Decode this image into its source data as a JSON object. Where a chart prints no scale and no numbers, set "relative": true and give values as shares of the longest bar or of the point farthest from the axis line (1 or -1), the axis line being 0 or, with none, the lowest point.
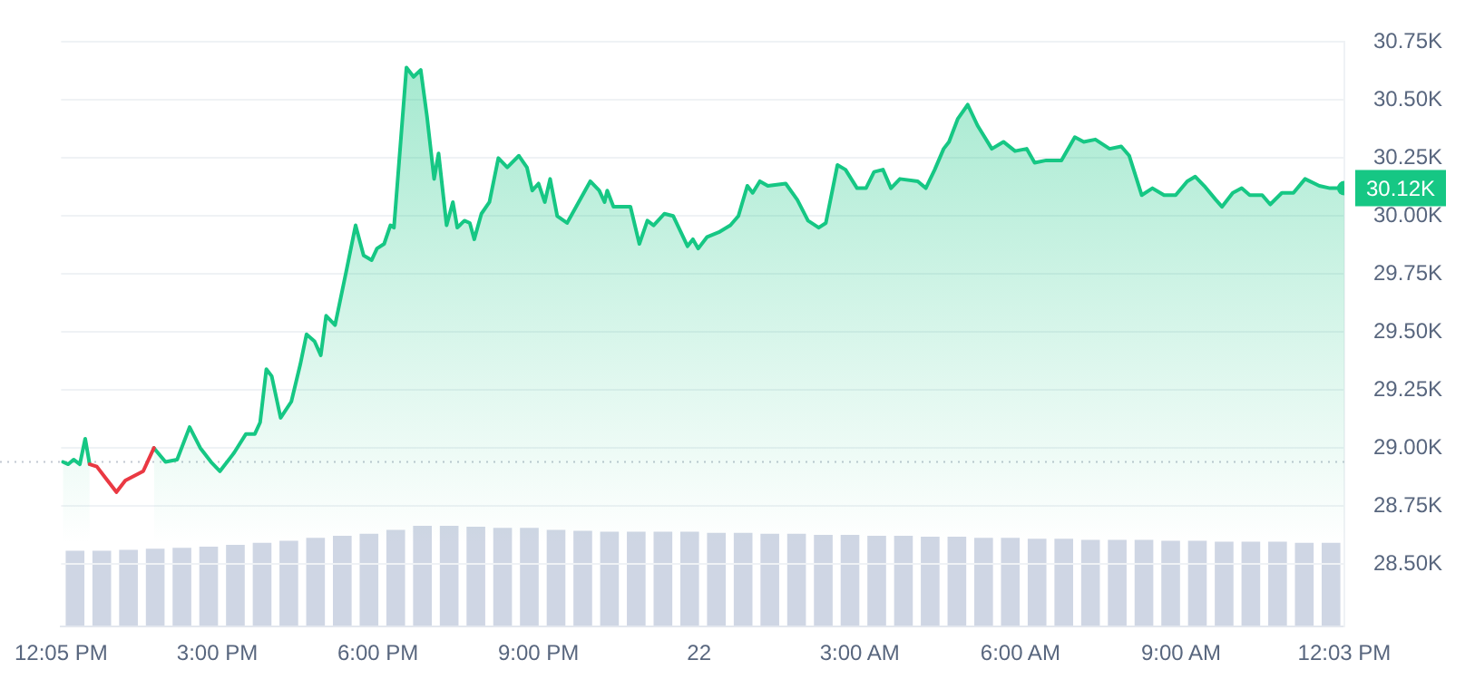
{
  "chart_data": [
    {
      "type": "area",
      "legend": false,
      "grid": "y",
      "marker": "none",
      "line_style": "solid",
      "xlim": [
        "--06-21T12:05",
        "--06-22T12:03"
      ],
      "xticks": [
        {
          "value": "--06-21T12:05",
          "label": "12:05 PM"
        },
        {
          "value": "--06-21T15:00",
          "label": "3:00 PM"
        },
        {
          "value": "--06-21T18:00",
          "label": "6:00 PM"
        },
        {
          "value": "--06-21T21:00",
          "label": "9:00 PM"
        },
        {
          "value": "--06-22T00:00",
          "label": "22"
        },
        {
          "value": "--06-22T03:00",
          "label": "3:00 AM"
        },
        {
          "value": "--06-22T06:00",
          "label": "6:00 AM"
        },
        {
          "value": "--06-22T09:00",
          "label": "9:00 AM"
        },
        {
          "value": "--06-22T12:03",
          "label": "12:03 PM"
        }
      ],
      "ylim": [
        28230,
        30750
      ],
      "yticks": [
        {
          "value": 28500,
          "label": "28.50K"
        },
        {
          "value": 28750,
          "label": "28.75K"
        },
        {
          "value": 29000,
          "label": "29.00K"
        },
        {
          "value": 29250,
          "label": "29.25K"
        },
        {
          "value": 29500,
          "label": "29.50K"
        },
        {
          "value": 29750,
          "label": "29.75K"
        },
        {
          "value": 30000,
          "label": "30.00K"
        },
        {
          "value": 30250,
          "label": "30.25K"
        },
        {
          "value": 30500,
          "label": "30.50K"
        },
        {
          "value": 30750,
          "label": "30.75K"
        }
      ],
      "ref_lines": [
        {
          "axis": "y",
          "value": 28940,
          "color": "#c1c7d1",
          "line_style": "dotted"
        }
      ],
      "annotations": [
        "30.12K"
      ],
      "series": [
        {
          "color": "#16c784",
          "x": [
            "--06-21T12:07",
            "--06-21T12:13",
            "--06-21T12:19",
            "--06-21T12:26",
            "--06-21T12:32",
            "--06-21T12:37",
            "--06-21T12:45",
            "--06-21T12:55",
            "--06-21T13:07",
            "--06-21T13:17",
            "--06-21T13:37",
            "--06-21T13:49",
            "--06-21T14:02",
            "--06-21T14:15",
            "--06-21T14:29",
            "--06-21T14:41",
            "--06-21T14:53",
            "--06-21T15:03",
            "--06-21T15:19",
            "--06-21T15:32",
            "--06-21T15:42",
            "--06-21T15:48",
            "--06-21T15:55",
            "--06-21T16:01",
            "--06-21T16:11",
            "--06-21T16:23",
            "--06-21T16:33",
            "--06-21T16:40",
            "--06-21T16:49",
            "--06-21T16:56",
            "--06-21T17:02",
            "--06-21T17:12",
            "--06-21T17:25",
            "--06-21T17:35",
            "--06-21T17:44",
            "--06-21T17:53",
            "--06-21T17:59",
            "--06-21T18:07",
            "--06-21T18:14",
            "--06-21T18:18",
            "--06-21T18:32",
            "--06-21T18:40",
            "--06-21T18:48",
            "--06-21T18:55",
            "--06-21T19:03",
            "--06-21T19:08",
            "--06-21T19:17",
            "--06-21T19:24",
            "--06-21T19:29",
            "--06-21T19:37",
            "--06-21T19:43",
            "--06-21T19:48",
            "--06-21T19:56",
            "--06-21T20:05",
            "--06-21T20:15",
            "--06-21T20:25",
            "--06-21T20:38",
            "--06-21T20:47",
            "--06-21T20:53",
            "--06-21T21:00",
            "--06-21T21:07",
            "--06-21T21:13",
            "--06-21T21:21",
            "--06-21T21:32",
            "--06-21T21:45",
            "--06-21T21:58",
            "--06-21T22:08",
            "--06-21T22:14",
            "--06-21T22:17",
            "--06-21T22:24",
            "--06-21T22:43",
            "--06-21T22:53",
            "--06-21T23:02",
            "--06-21T23:09",
            "--06-21T23:21",
            "--06-21T23:31",
            "--06-21T23:47",
            "--06-21T23:53",
            "--06-21T23:59",
            "--06-22T00:09",
            "--06-22T00:22",
            "--06-22T00:35",
            "--06-22T00:44",
            "--06-22T00:54",
            "--06-22T01:00",
            "--06-22T01:08",
            "--06-22T01:17",
            "--06-22T01:37",
            "--06-22T01:50",
            "--06-22T02:02",
            "--06-22T02:14",
            "--06-22T02:22",
            "--06-22T02:35",
            "--06-22T02:44",
            "--06-22T02:57",
            "--06-22T03:07",
            "--06-22T03:16",
            "--06-22T03:26",
            "--06-22T03:35",
            "--06-22T03:45",
            "--06-22T04:05",
            "--06-22T04:14",
            "--06-22T04:24",
            "--06-22T04:34",
            "--06-22T04:40",
            "--06-22T04:50",
            "--06-22T05:01",
            "--06-22T05:12",
            "--06-22T05:28",
            "--06-22T05:41",
            "--06-22T05:54",
            "--06-22T06:07",
            "--06-22T06:16",
            "--06-22T06:29",
            "--06-22T06:46",
            "--06-22T07:01",
            "--06-22T07:11",
            "--06-22T07:24",
            "--06-22T07:40",
            "--06-22T07:53",
            "--06-22T08:02",
            "--06-22T08:16",
            "--06-22T08:28",
            "--06-22T08:41",
            "--06-22T08:54",
            "--06-22T09:07",
            "--06-22T09:16",
            "--06-22T09:26",
            "--06-22T09:39",
            "--06-22T09:46",
            "--06-22T09:58",
            "--06-22T10:08",
            "--06-22T10:17",
            "--06-22T10:31",
            "--06-22T10:40",
            "--06-22T10:53",
            "--06-22T11:06",
            "--06-22T11:19",
            "--06-22T11:35",
            "--06-22T11:47",
            "--06-22T12:03"
          ],
          "values": [
            28940,
            28930,
            28950,
            28930,
            29040,
            28930,
            null,
            null,
            null,
            null,
            null,
            29000,
            28940,
            28950,
            29090,
            29000,
            28940,
            28900,
            28980,
            29060,
            29060,
            29110,
            29340,
            29310,
            29130,
            29200,
            29360,
            29490,
            29460,
            29400,
            29570,
            29530,
            29770,
            29960,
            29830,
            29810,
            29860,
            29880,
            29960,
            29950,
            30640,
            30600,
            30630,
            30430,
            30160,
            30270,
            29960,
            30060,
            29950,
            29980,
            29970,
            29900,
            30010,
            30060,
            30250,
            30210,
            30260,
            30210,
            30110,
            30140,
            30060,
            30160,
            30000,
            29970,
            30060,
            30150,
            30110,
            30060,
            30110,
            30040,
            30040,
            29880,
            29980,
            29960,
            30010,
            30000,
            29870,
            29900,
            29860,
            29910,
            29930,
            29960,
            30000,
            30130,
            30100,
            30150,
            30130,
            30140,
            30070,
            29980,
            29950,
            29970,
            30220,
            30200,
            30120,
            30120,
            30190,
            30200,
            30120,
            30160,
            30150,
            30120,
            30200,
            30290,
            30320,
            30420,
            30480,
            30390,
            30290,
            30320,
            30280,
            30290,
            30230,
            30240,
            30240,
            30340,
            30320,
            30330,
            30290,
            30300,
            30260,
            30090,
            30120,
            30090,
            30090,
            30150,
            30170,
            30130,
            30070,
            30040,
            30100,
            30120,
            30090,
            30090,
            30050,
            30100,
            30100,
            30160,
            30130,
            30120,
            30120
          ]
        },
        {
          "type": "line",
          "color": "#ea3943",
          "x": [
            "--06-21T12:37",
            "--06-21T12:45",
            "--06-21T12:55",
            "--06-21T13:07",
            "--06-21T13:17",
            "--06-21T13:37",
            "--06-21T13:49"
          ],
          "values": [
            28930,
            28920,
            28870,
            28810,
            28860,
            28900,
            29000
          ]
        }
      ]
    },
    {
      "type": "bar",
      "relative": true,
      "color": "#cfd6e4",
      "categories": [
        null,
        null,
        null,
        null,
        null,
        null,
        null,
        null,
        null,
        null,
        null,
        null,
        null,
        null,
        null,
        null,
        null,
        null,
        null,
        null,
        null,
        null,
        null,
        null,
        null,
        null,
        null,
        null,
        null,
        null,
        null,
        null,
        null,
        null,
        null,
        null,
        null,
        null,
        null,
        null,
        null,
        null,
        null,
        null,
        null,
        null,
        null,
        null
      ],
      "values": [
        0.75,
        0.75,
        0.76,
        0.77,
        0.78,
        0.79,
        0.81,
        0.83,
        0.85,
        0.88,
        0.9,
        0.92,
        0.96,
        1.0,
        1.0,
        0.99,
        0.98,
        0.98,
        0.96,
        0.95,
        0.94,
        0.94,
        0.94,
        0.94,
        0.93,
        0.93,
        0.92,
        0.92,
        0.91,
        0.91,
        0.9,
        0.9,
        0.89,
        0.89,
        0.88,
        0.88,
        0.87,
        0.87,
        0.86,
        0.86,
        0.86,
        0.85,
        0.85,
        0.84,
        0.84,
        0.84,
        0.83,
        0.83
      ]
    }
  ]
}
